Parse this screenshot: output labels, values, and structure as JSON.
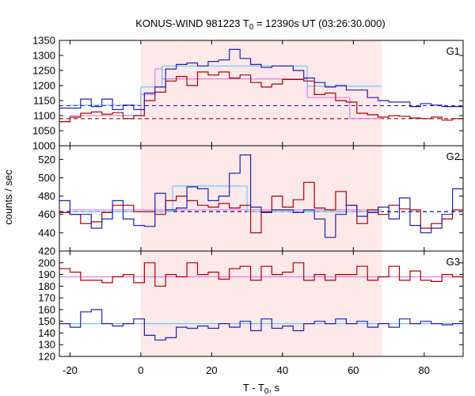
{
  "chart_data": {
    "type": "line",
    "title_prefix": "KONUS-WIND 981223 T",
    "title_sub": "0",
    "title_suffix": " = 12390s UT (03:26:30.000)",
    "xlabel_prefix": "T - T",
    "xlabel_sub": "0",
    "xlabel_suffix": ", s",
    "ylabel": "counts / sec",
    "xlim": [
      -23,
      91
    ],
    "x_ticks": [
      -20,
      0,
      20,
      40,
      60,
      80
    ],
    "x_tick_labels": [
      "-20",
      "0",
      "20",
      "40",
      "60",
      "80"
    ],
    "highlight_interval": [
      0,
      68
    ],
    "highlight_color": "#fde8ea",
    "bin_edges": [
      -23,
      -20,
      -17,
      -14,
      -11,
      -8,
      -5,
      -2,
      1,
      4,
      7,
      10,
      13,
      16,
      19,
      22,
      25,
      28,
      31,
      34,
      37,
      40,
      43,
      46,
      49,
      52,
      55,
      58,
      61,
      64,
      67,
      70,
      73,
      76,
      79,
      82,
      85,
      88,
      91
    ],
    "colors": {
      "red": "#aa0000",
      "blue": "#2222aa",
      "pink": "#e080e0",
      "lightblue": "#70c8f0"
    },
    "panels": [
      {
        "name": "G1",
        "ylim": [
          1000,
          1350
        ],
        "y_ticks": [
          1000,
          1050,
          1100,
          1150,
          1200,
          1250,
          1300,
          1350
        ],
        "y_tick_labels": [
          "1000",
          "1050",
          "1100",
          "1150",
          "1200",
          "1250",
          "1300",
          "1350"
        ],
        "background_levels": {
          "red": 1090,
          "blue": 1133
        },
        "series": [
          {
            "color": "red",
            "values": [
              1080,
              1095,
              1108,
              1112,
              1105,
              1110,
              1090,
              1100,
              1150,
              1178,
              1215,
              1230,
              1200,
              1245,
              1235,
              1245,
              1225,
              1235,
              1210,
              1195,
              1205,
              1220,
              1220,
              1215,
              1170,
              1175,
              1150,
              1145,
              1108,
              1103,
              1095,
              1100,
              1098,
              1092,
              1090,
              1095,
              1085,
              1090
            ]
          },
          {
            "color": "blue",
            "values": [
              1125,
              1125,
              1155,
              1130,
              1155,
              1120,
              1135,
              1120,
              1175,
              1195,
              1255,
              1270,
              1275,
              1265,
              1280,
              1285,
              1320,
              1290,
              1270,
              1260,
              1265,
              1265,
              1250,
              1225,
              1210,
              1195,
              1200,
              1185,
              1185,
              1160,
              1150,
              1145,
              1145,
              1130,
              1140,
              1135,
              1130,
              1130
            ]
          }
        ],
        "blocks": [
          {
            "color": "pink",
            "x": [
              -20,
              0
            ],
            "value": 1100
          },
          {
            "color": "pink",
            "x": [
              0,
              4
            ],
            "value": 1170
          },
          {
            "color": "pink",
            "x": [
              4,
              6
            ],
            "value": 1255
          },
          {
            "color": "pink",
            "x": [
              6,
              47
            ],
            "value": 1222
          },
          {
            "color": "pink",
            "x": [
              47,
              59
            ],
            "value": 1160
          },
          {
            "color": "pink",
            "x": [
              59,
              68
            ],
            "value": 1090
          },
          {
            "color": "lightblue",
            "x": [
              -20,
              0
            ],
            "value": 1135
          },
          {
            "color": "lightblue",
            "x": [
              0,
              6
            ],
            "value": 1195
          },
          {
            "color": "lightblue",
            "x": [
              6,
              47
            ],
            "value": 1265
          },
          {
            "color": "lightblue",
            "x": [
              47,
              68
            ],
            "value": 1198
          }
        ]
      },
      {
        "name": "G2",
        "ylim": [
          420,
          535
        ],
        "y_ticks": [
          420,
          440,
          460,
          480,
          500,
          520
        ],
        "y_tick_labels": [
          "420",
          "440",
          "460",
          "480",
          "500",
          "520"
        ],
        "background_levels": {
          "red": 463,
          "blue": 463
        },
        "series": [
          {
            "color": "red",
            "values": [
              462,
              460,
              450,
              452,
              462,
              470,
              470,
              463,
              463,
              460,
              475,
              480,
              475,
              470,
              468,
              472,
              467,
              470,
              440,
              463,
              480,
              468,
              476,
              495,
              467,
              465,
              485,
              470,
              450,
              465,
              460,
              470,
              466,
              465,
              445,
              450,
              455,
              465
            ]
          },
          {
            "color": "blue",
            "values": [
              475,
              460,
              460,
              445,
              455,
              475,
              455,
              448,
              447,
              483,
              465,
              467,
              490,
              488,
              475,
              480,
              505,
              525,
              468,
              462,
              465,
              465,
              462,
              465,
              455,
              435,
              460,
              470,
              458,
              462,
              468,
              455,
              478,
              448,
              440,
              445,
              460,
              488
            ]
          }
        ],
        "blocks": [
          {
            "color": "pink",
            "x": [
              -20,
              68
            ],
            "value": 465
          },
          {
            "color": "lightblue",
            "x": [
              9,
              30
            ],
            "value": 491
          },
          {
            "color": "lightblue",
            "x": [
              -20,
              9
            ],
            "value": 463
          },
          {
            "color": "lightblue",
            "x": [
              30,
              68
            ],
            "value": 463
          }
        ]
      },
      {
        "name": "G3",
        "ylim": [
          120,
          210
        ],
        "y_ticks": [
          120,
          130,
          140,
          150,
          160,
          170,
          180,
          190,
          200
        ],
        "y_tick_labels": [
          "120",
          "130",
          "140",
          "150",
          "160",
          "170",
          "180",
          "190",
          "200"
        ],
        "background_levels": {},
        "series": [
          {
            "color": "red",
            "values": [
              195,
              192,
              185,
              185,
              183,
              188,
              190,
              183,
              200,
              180,
              190,
              188,
              200,
              190,
              192,
              186,
              195,
              197,
              185,
              197,
              190,
              192,
              200,
              185,
              190,
              185,
              190,
              190,
              197,
              185,
              188,
              197,
              185,
              193,
              185,
              184,
              190,
              188
            ]
          },
          {
            "color": "blue",
            "values": [
              148,
              145,
              158,
              160,
              148,
              146,
              148,
              152,
              138,
              134,
              136,
              145,
              144,
              146,
              144,
              148,
              145,
              150,
              142,
              152,
              144,
              146,
              142,
              148,
              150,
              148,
              152,
              148,
              150,
              145,
              148,
              145,
              152,
              148,
              150,
              148,
              147,
              148
            ]
          }
        ],
        "blocks": [
          {
            "color": "pink",
            "x": [
              -23,
              91
            ],
            "value": 188
          },
          {
            "color": "lightblue",
            "x": [
              -23,
              91
            ],
            "value": 148
          }
        ]
      }
    ]
  }
}
